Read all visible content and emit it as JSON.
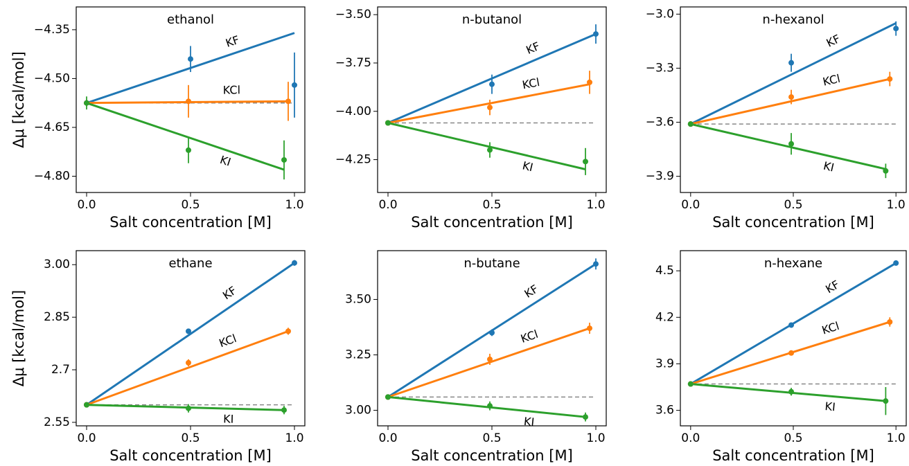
{
  "chart_data": [
    {
      "type": "scatter",
      "title": "ethanol",
      "xlabel": "Salt concentration [M]",
      "ylabel": "Δμ [kcal/mol]",
      "xlim": [
        -0.05,
        1.05
      ],
      "xticks": [
        {
          "value": 0,
          "label": "0.0"
        },
        {
          "value": 0.5,
          "label": "0.5"
        },
        {
          "value": 1,
          "label": "1.0"
        }
      ],
      "ylim": [
        -4.85,
        -4.28
      ],
      "yticks": [
        {
          "value": -4.35,
          "label": "−4.35"
        },
        {
          "value": -4.5,
          "label": "−4.50"
        },
        {
          "value": -4.65,
          "label": "−4.65"
        },
        {
          "value": -4.8,
          "label": "−4.80"
        }
      ],
      "baseline": -4.575,
      "series": [
        {
          "name": "KF",
          "color": "#1f77b4",
          "x": [
            0,
            0.5,
            1.0
          ],
          "values": [
            -4.575,
            -4.44,
            -4.52
          ],
          "errors": [
            0.01,
            0.04,
            0.1
          ],
          "fit_x": [
            0,
            1
          ],
          "fit_y": [
            -4.575,
            -4.36
          ]
        },
        {
          "name": "KCl",
          "color": "#ff7f0e",
          "x": [
            0,
            0.49,
            0.97
          ],
          "values": [
            -4.575,
            -4.57,
            -4.57
          ],
          "errors": [
            0.01,
            0.05,
            0.06
          ],
          "fit_x": [
            0,
            0.97
          ],
          "fit_y": [
            -4.575,
            -4.57
          ]
        },
        {
          "name": "KI",
          "color": "#2ca02c",
          "x": [
            0,
            0.49,
            0.95
          ],
          "values": [
            -4.575,
            -4.72,
            -4.75
          ],
          "errors": [
            0.02,
            0.04,
            0.06
          ],
          "fit_x": [
            0,
            0.95
          ],
          "fit_y": [
            -4.575,
            -4.78
          ]
        }
      ]
    },
    {
      "type": "scatter",
      "title": "n-butanol",
      "xlabel": "Salt concentration [M]",
      "xlim": [
        -0.05,
        1.05
      ],
      "xticks": [
        {
          "value": 0,
          "label": "0.0"
        },
        {
          "value": 0.5,
          "label": "0.5"
        },
        {
          "value": 1,
          "label": "1.0"
        }
      ],
      "ylim": [
        -4.42,
        -3.46
      ],
      "yticks": [
        {
          "value": -3.5,
          "label": "−3.50"
        },
        {
          "value": -3.75,
          "label": "−3.75"
        },
        {
          "value": -4,
          "label": "−4.00"
        },
        {
          "value": -4.25,
          "label": "−4.25"
        }
      ],
      "baseline": -4.06,
      "series": [
        {
          "name": "KF",
          "color": "#1f77b4",
          "x": [
            0,
            0.5,
            1.0
          ],
          "values": [
            -4.06,
            -3.86,
            -3.6
          ],
          "errors": [
            0.01,
            0.05,
            0.05
          ],
          "fit_x": [
            0,
            1
          ],
          "fit_y": [
            -4.06,
            -3.6
          ]
        },
        {
          "name": "KCl",
          "color": "#ff7f0e",
          "x": [
            0,
            0.49,
            0.97
          ],
          "values": [
            -4.06,
            -3.98,
            -3.85
          ],
          "errors": [
            0.01,
            0.04,
            0.06
          ],
          "fit_x": [
            0,
            0.97
          ],
          "fit_y": [
            -4.06,
            -3.86
          ]
        },
        {
          "name": "KI",
          "color": "#2ca02c",
          "x": [
            0,
            0.49,
            0.95
          ],
          "values": [
            -4.06,
            -4.2,
            -4.26
          ],
          "errors": [
            0.01,
            0.04,
            0.07
          ],
          "fit_x": [
            0,
            0.95
          ],
          "fit_y": [
            -4.06,
            -4.3
          ]
        }
      ]
    },
    {
      "type": "scatter",
      "title": "n-hexanol",
      "xlabel": "Salt concentration [M]",
      "xlim": [
        -0.05,
        1.05
      ],
      "xticks": [
        {
          "value": 0,
          "label": "0.0"
        },
        {
          "value": 0.5,
          "label": "0.5"
        },
        {
          "value": 1,
          "label": "1.0"
        }
      ],
      "ylim": [
        -3.99,
        -2.96
      ],
      "yticks": [
        {
          "value": -3,
          "label": "−3.0"
        },
        {
          "value": -3.3,
          "label": "−3.3"
        },
        {
          "value": -3.6,
          "label": "−3.6"
        },
        {
          "value": -3.9,
          "label": "−3.9"
        }
      ],
      "baseline": -3.61,
      "series": [
        {
          "name": "KF",
          "color": "#1f77b4",
          "x": [
            0,
            0.49,
            1.0
          ],
          "values": [
            -3.61,
            -3.27,
            -3.08
          ],
          "errors": [
            0.01,
            0.05,
            0.04
          ],
          "fit_x": [
            0,
            1
          ],
          "fit_y": [
            -3.61,
            -3.05
          ]
        },
        {
          "name": "KCl",
          "color": "#ff7f0e",
          "x": [
            0,
            0.49,
            0.97
          ],
          "values": [
            -3.61,
            -3.46,
            -3.36
          ],
          "errors": [
            0.01,
            0.04,
            0.04
          ],
          "fit_x": [
            0,
            0.97
          ],
          "fit_y": [
            -3.61,
            -3.36
          ]
        },
        {
          "name": "KI",
          "color": "#2ca02c",
          "x": [
            0,
            0.49,
            0.95
          ],
          "values": [
            -3.61,
            -3.72,
            -3.87
          ],
          "errors": [
            0.01,
            0.06,
            0.04
          ],
          "fit_x": [
            0,
            0.95
          ],
          "fit_y": [
            -3.61,
            -3.86
          ]
        }
      ]
    },
    {
      "type": "scatter",
      "title": "ethane",
      "xlabel": "Salt concentration [M]",
      "ylabel": "Δμ [kcal/mol]",
      "xlim": [
        -0.05,
        1.05
      ],
      "xticks": [
        {
          "value": 0,
          "label": "0.0"
        },
        {
          "value": 0.5,
          "label": "0.5"
        },
        {
          "value": 1,
          "label": "1.0"
        }
      ],
      "ylim": [
        2.54,
        3.04
      ],
      "yticks": [
        2.55,
        2.7,
        2.85,
        {
          "value": 3,
          "label": "3.00"
        }
      ],
      "baseline": 2.6,
      "series": [
        {
          "name": "KF",
          "color": "#1f77b4",
          "x": [
            0,
            0.49,
            1.0
          ],
          "values": [
            2.6,
            2.81,
            3.005
          ],
          "errors": [
            0.003,
            0.005,
            0.008
          ],
          "fit_x": [
            0,
            1
          ],
          "fit_y": [
            2.6,
            3.005
          ]
        },
        {
          "name": "KCl",
          "color": "#ff7f0e",
          "x": [
            0,
            0.49,
            0.97
          ],
          "values": [
            2.6,
            2.72,
            2.81
          ],
          "errors": [
            0.003,
            0.01,
            0.01
          ],
          "fit_x": [
            0,
            0.97
          ],
          "fit_y": [
            2.6,
            2.81
          ]
        },
        {
          "name": "KI",
          "color": "#2ca02c",
          "x": [
            0,
            0.49,
            0.95
          ],
          "values": [
            2.6,
            2.59,
            2.585
          ],
          "errors": [
            0.003,
            0.012,
            0.012
          ],
          "fit_x": [
            0,
            0.95
          ],
          "fit_y": [
            2.6,
            2.585
          ]
        }
      ]
    },
    {
      "type": "scatter",
      "title": "n-butane",
      "xlabel": "Salt concentration [M]",
      "xlim": [
        -0.05,
        1.05
      ],
      "xticks": [
        {
          "value": 0,
          "label": "0.0"
        },
        {
          "value": 0.5,
          "label": "0.5"
        },
        {
          "value": 1,
          "label": "1.0"
        }
      ],
      "ylim": [
        2.93,
        3.72
      ],
      "yticks": [
        {
          "value": 3,
          "label": "3.00"
        },
        3.25,
        {
          "value": 3.5,
          "label": "3.50"
        }
      ],
      "baseline": 3.06,
      "series": [
        {
          "name": "KF",
          "color": "#1f77b4",
          "x": [
            0,
            0.5,
            1.0
          ],
          "values": [
            3.06,
            3.35,
            3.66
          ],
          "errors": [
            0.005,
            0.015,
            0.025
          ],
          "fit_x": [
            0,
            1
          ],
          "fit_y": [
            3.06,
            3.66
          ]
        },
        {
          "name": "KCl",
          "color": "#ff7f0e",
          "x": [
            0,
            0.49,
            0.97
          ],
          "values": [
            3.06,
            3.23,
            3.37
          ],
          "errors": [
            0.005,
            0.025,
            0.025
          ],
          "fit_x": [
            0,
            0.97
          ],
          "fit_y": [
            3.06,
            3.37
          ]
        },
        {
          "name": "KI",
          "color": "#2ca02c",
          "x": [
            0,
            0.49,
            0.95
          ],
          "values": [
            3.06,
            3.02,
            2.97
          ],
          "errors": [
            0.005,
            0.02,
            0.02
          ],
          "fit_x": [
            0,
            0.95
          ],
          "fit_y": [
            3.06,
            2.97
          ]
        }
      ]
    },
    {
      "type": "scatter",
      "title": "n-hexane",
      "xlabel": "Salt concentration [M]",
      "xlim": [
        -0.05,
        1.05
      ],
      "xticks": [
        {
          "value": 0,
          "label": "0.0"
        },
        {
          "value": 0.5,
          "label": "0.5"
        },
        {
          "value": 1,
          "label": "1.0"
        }
      ],
      "ylim": [
        3.5,
        4.63
      ],
      "yticks": [
        3.6,
        3.9,
        4.2,
        4.5
      ],
      "baseline": 3.77,
      "series": [
        {
          "name": "KF",
          "color": "#1f77b4",
          "x": [
            0,
            0.49,
            1.0
          ],
          "values": [
            3.77,
            4.15,
            4.55
          ],
          "errors": [
            0.005,
            0.015,
            0.015
          ],
          "fit_x": [
            0,
            1
          ],
          "fit_y": [
            3.77,
            4.55
          ]
        },
        {
          "name": "KCl",
          "color": "#ff7f0e",
          "x": [
            0,
            0.49,
            0.97
          ],
          "values": [
            3.77,
            3.97,
            4.17
          ],
          "errors": [
            0.005,
            0.015,
            0.03
          ],
          "fit_x": [
            0,
            0.97
          ],
          "fit_y": [
            3.77,
            4.17
          ]
        },
        {
          "name": "KI",
          "color": "#2ca02c",
          "x": [
            0,
            0.49,
            0.95
          ],
          "values": [
            3.77,
            3.72,
            3.66
          ],
          "errors": [
            0.005,
            0.025,
            0.09
          ],
          "fit_x": [
            0,
            0.95
          ],
          "fit_y": [
            3.77,
            3.66
          ]
        }
      ]
    }
  ]
}
